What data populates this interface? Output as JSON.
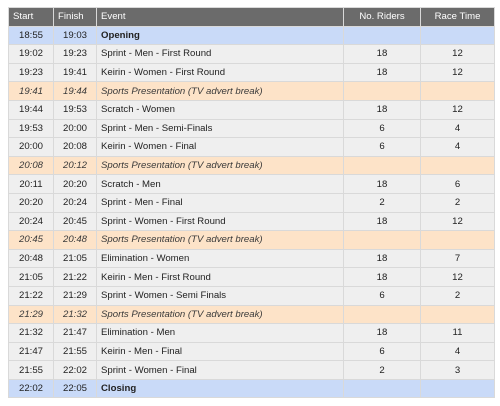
{
  "headers": {
    "start": "Start",
    "finish": "Finish",
    "event": "Event",
    "riders": "No. Riders",
    "time": "Race Time"
  },
  "colors": {
    "header_bg": "#6b6b6b",
    "ceremony_bg": "#c9daf8",
    "break_bg": "#fde3c8",
    "race_bg": "#efefef"
  },
  "rows": [
    {
      "type": "ceremony",
      "start": "18:55",
      "finish": "19:03",
      "event": "Opening",
      "riders": "",
      "time": ""
    },
    {
      "type": "race",
      "start": "19:02",
      "finish": "19:23",
      "event": "Sprint - Men - First Round",
      "riders": "18",
      "time": "12"
    },
    {
      "type": "race",
      "start": "19:23",
      "finish": "19:41",
      "event": "Keirin - Women - First Round",
      "riders": "18",
      "time": "12"
    },
    {
      "type": "break",
      "start": "19:41",
      "finish": "19:44",
      "event": "Sports Presentation (TV advert break)",
      "riders": "",
      "time": ""
    },
    {
      "type": "race",
      "start": "19:44",
      "finish": "19:53",
      "event": "Scratch - Women",
      "riders": "18",
      "time": "12"
    },
    {
      "type": "race",
      "start": "19:53",
      "finish": "20:00",
      "event": "Sprint - Men - Semi-Finals",
      "riders": "6",
      "time": "4"
    },
    {
      "type": "race",
      "start": "20:00",
      "finish": "20:08",
      "event": "Keirin - Women - Final",
      "riders": "6",
      "time": "4"
    },
    {
      "type": "break",
      "start": "20:08",
      "finish": "20:12",
      "event": "Sports Presentation (TV advert break)",
      "riders": "",
      "time": ""
    },
    {
      "type": "race",
      "start": "20:11",
      "finish": "20:20",
      "event": "Scratch - Men",
      "riders": "18",
      "time": "6"
    },
    {
      "type": "race",
      "start": "20:20",
      "finish": "20:24",
      "event": "Sprint - Men - Final",
      "riders": "2",
      "time": "2"
    },
    {
      "type": "race",
      "start": "20:24",
      "finish": "20:45",
      "event": "Sprint - Women - First Round",
      "riders": "18",
      "time": "12"
    },
    {
      "type": "break",
      "start": "20:45",
      "finish": "20:48",
      "event": "Sports Presentation (TV advert break)",
      "riders": "",
      "time": ""
    },
    {
      "type": "race",
      "start": "20:48",
      "finish": "21:05",
      "event": "Elimination - Women",
      "riders": "18",
      "time": "7"
    },
    {
      "type": "race",
      "start": "21:05",
      "finish": "21:22",
      "event": "Keirin - Men - First Round",
      "riders": "18",
      "time": "12"
    },
    {
      "type": "race",
      "start": "21:22",
      "finish": "21:29",
      "event": "Sprint - Women - Semi Finals",
      "riders": "6",
      "time": "2"
    },
    {
      "type": "break",
      "start": "21:29",
      "finish": "21:32",
      "event": "Sports Presentation (TV advert break)",
      "riders": "",
      "time": ""
    },
    {
      "type": "race",
      "start": "21:32",
      "finish": "21:47",
      "event": "Elimination - Men",
      "riders": "18",
      "time": "11"
    },
    {
      "type": "race",
      "start": "21:47",
      "finish": "21:55",
      "event": "Keirin - Men - Final",
      "riders": "6",
      "time": "4"
    },
    {
      "type": "race",
      "start": "21:55",
      "finish": "22:02",
      "event": "Sprint - Women - Final",
      "riders": "2",
      "time": "3"
    },
    {
      "type": "ceremony",
      "start": "22:02",
      "finish": "22:05",
      "event": "Closing",
      "riders": "",
      "time": ""
    }
  ]
}
